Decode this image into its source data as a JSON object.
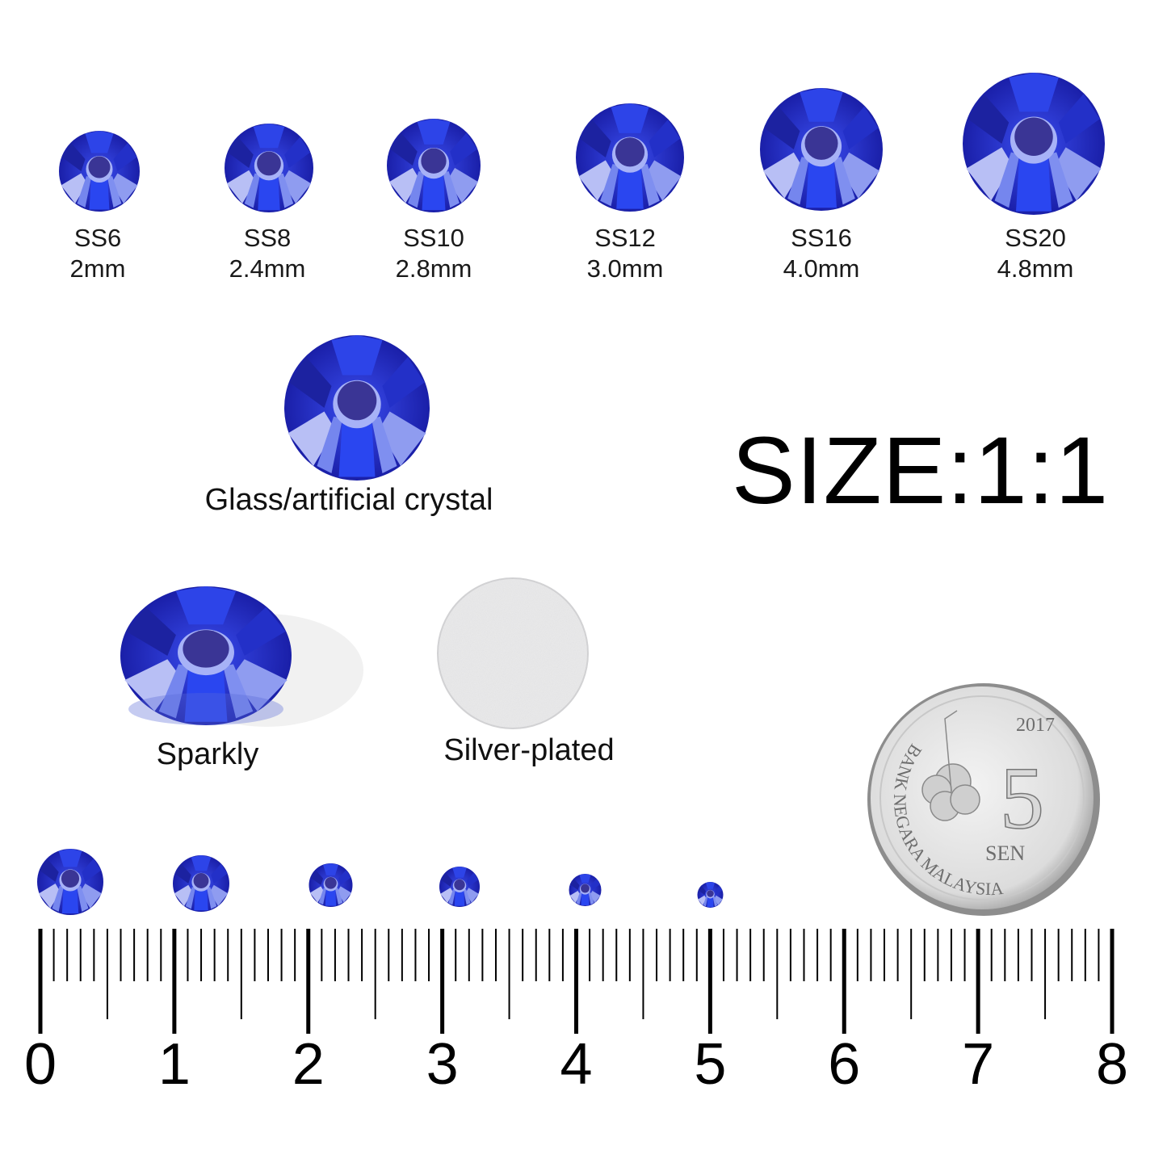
{
  "sizes": [
    {
      "code": "SS6",
      "mm": "2mm"
    },
    {
      "code": "SS8",
      "mm": "2.4mm"
    },
    {
      "code": "SS10",
      "mm": "2.8mm"
    },
    {
      "code": "SS12",
      "mm": "3.0mm"
    },
    {
      "code": "SS16",
      "mm": "4.0mm"
    },
    {
      "code": "SS20",
      "mm": "4.8mm"
    }
  ],
  "material_caption": "Glass/artificial crystal",
  "scale_title": "SIZE:1:1",
  "front_caption": "Sparkly",
  "back_caption": "Silver-plated",
  "coin": {
    "year": "2017",
    "value": "5",
    "unit": "SEN",
    "issuer": "BANK NEGARA MALAYSIA"
  },
  "ruler": {
    "unit_labels": [
      "0",
      "1",
      "2",
      "3",
      "4",
      "5",
      "6",
      "7",
      "8"
    ]
  },
  "colors": {
    "gem_dark": "#1a1fa8",
    "gem_mid": "#2c3fe0",
    "gem_light": "#a9b4f5",
    "silver": "#e9e9ea"
  }
}
